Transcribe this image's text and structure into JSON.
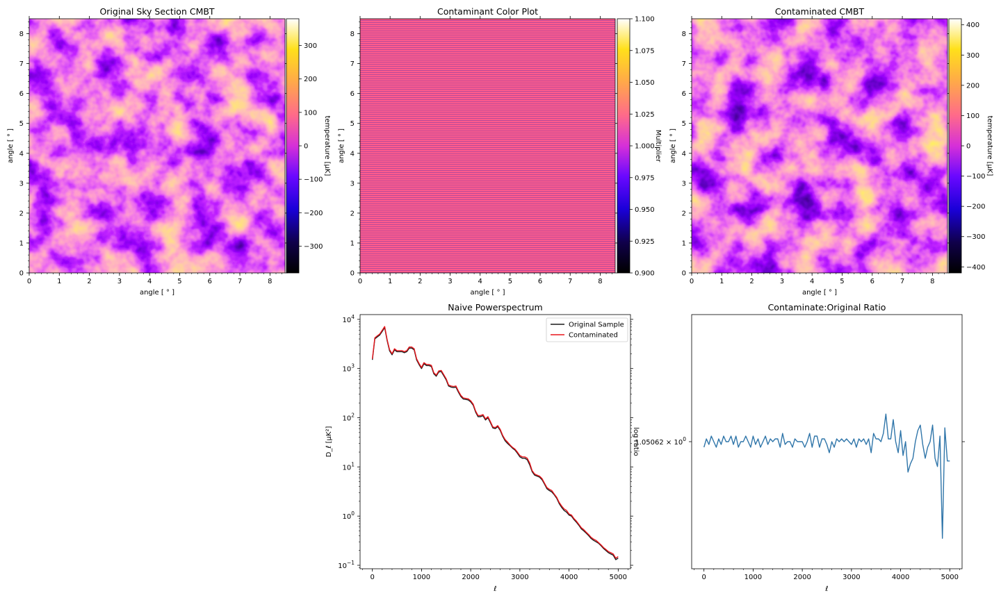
{
  "colors": {
    "original_line": "#1a1a1a",
    "contaminated_line": "#e8151b",
    "ratio_line": "#2f75a9",
    "contaminant_fill": "#ff5b8a"
  },
  "colormap": "gnuplot2",
  "chart_data": [
    {
      "id": "original_sky",
      "type": "heatmap",
      "title": "Original Sky Section CMBT",
      "xlabel": "angle [ $^\\circ$ ]",
      "ylabel": "angle [ $^\\circ$ ]",
      "xlim": [
        0,
        8.5
      ],
      "ylim": [
        0,
        8.5
      ],
      "xticks": [
        "0",
        "1",
        "2",
        "3",
        "4",
        "5",
        "6",
        "7",
        "8"
      ],
      "yticks": [
        "0",
        "1",
        "2",
        "3",
        "4",
        "5",
        "6",
        "7",
        "8"
      ],
      "colorbar": {
        "label": "temperature [μK]",
        "range": [
          -380,
          380
        ],
        "ticks": [
          {
            "value": -300,
            "label": "−300"
          },
          {
            "value": -200,
            "label": "−200"
          },
          {
            "value": -100,
            "label": "−100"
          },
          {
            "value": 0,
            "label": "0"
          },
          {
            "value": 100,
            "label": "100"
          },
          {
            "value": 200,
            "label": "200"
          },
          {
            "value": 300,
            "label": "300"
          }
        ]
      }
    },
    {
      "id": "contaminant",
      "type": "heatmap",
      "title": "Contaminant Color Plot",
      "xlabel": "angle [ $^\\circ$ ]",
      "ylabel": "angle [ $^\\circ$ ]",
      "xlim": [
        0,
        8.5
      ],
      "ylim": [
        0,
        8.5
      ],
      "xticks": [
        "0",
        "1",
        "2",
        "3",
        "4",
        "5",
        "6",
        "7",
        "8"
      ],
      "yticks": [
        "0",
        "1",
        "2",
        "3",
        "4",
        "5",
        "6",
        "7",
        "8"
      ],
      "value": 1.0,
      "colorbar": {
        "label": "Multiplier",
        "range": [
          0.9,
          1.1
        ],
        "ticks": [
          {
            "value": 0.9,
            "label": "0.900"
          },
          {
            "value": 0.925,
            "label": "0.925"
          },
          {
            "value": 0.95,
            "label": "0.950"
          },
          {
            "value": 0.975,
            "label": "0.975"
          },
          {
            "value": 1.0,
            "label": "1.000"
          },
          {
            "value": 1.025,
            "label": "1.025"
          },
          {
            "value": 1.05,
            "label": "1.050"
          },
          {
            "value": 1.075,
            "label": "1.075"
          },
          {
            "value": 1.1,
            "label": "1.100"
          }
        ]
      }
    },
    {
      "id": "contaminated_sky",
      "type": "heatmap",
      "title": "Contaminated CMBT",
      "xlabel": "angle [ $^\\circ$ ]",
      "ylabel": "angle [ $^\\circ$ ]",
      "xlim": [
        0,
        8.5
      ],
      "ylim": [
        0,
        8.5
      ],
      "xticks": [
        "0",
        "1",
        "2",
        "3",
        "4",
        "5",
        "6",
        "7",
        "8"
      ],
      "yticks": [
        "0",
        "1",
        "2",
        "3",
        "4",
        "5",
        "6",
        "7",
        "8"
      ],
      "colorbar": {
        "label": "temperature [μK]",
        "range": [
          -420,
          420
        ],
        "ticks": [
          {
            "value": -400,
            "label": "−400"
          },
          {
            "value": -300,
            "label": "−300"
          },
          {
            "value": -200,
            "label": "−200"
          },
          {
            "value": -100,
            "label": "−100"
          },
          {
            "value": 0,
            "label": "0"
          },
          {
            "value": 100,
            "label": "100"
          },
          {
            "value": 200,
            "label": "200"
          },
          {
            "value": 300,
            "label": "300"
          },
          {
            "value": 400,
            "label": "400"
          }
        ]
      }
    },
    {
      "id": "powerspectrum",
      "type": "line",
      "title": "Naive Powerspectrum",
      "xlabel": "ℓ",
      "ylabel": "D_ℓ [μK²]",
      "yscale": "log",
      "xlim": [
        -250,
        5250
      ],
      "ylim": [
        0.085,
        12500
      ],
      "xticks": [
        {
          "value": 0,
          "label": "0"
        },
        {
          "value": 1000,
          "label": "1000"
        },
        {
          "value": 2000,
          "label": "2000"
        },
        {
          "value": 3000,
          "label": "3000"
        },
        {
          "value": 4000,
          "label": "4000"
        },
        {
          "value": 5000,
          "label": "5000"
        }
      ],
      "yticks": [
        {
          "value": 0.1,
          "base": "10",
          "exp": "−1"
        },
        {
          "value": 1,
          "base": "10",
          "exp": "0"
        },
        {
          "value": 10,
          "base": "10",
          "exp": "1"
        },
        {
          "value": 100,
          "base": "10",
          "exp": "2"
        },
        {
          "value": 1000,
          "base": "10",
          "exp": "3"
        },
        {
          "value": 10000,
          "base": "10",
          "exp": "4"
        }
      ],
      "legend": "top-right",
      "x": [
        0,
        50,
        100,
        150,
        200,
        250,
        300,
        350,
        400,
        450,
        500,
        550,
        600,
        650,
        700,
        750,
        800,
        850,
        900,
        950,
        1000,
        1050,
        1100,
        1150,
        1200,
        1250,
        1300,
        1350,
        1400,
        1450,
        1500,
        1550,
        1600,
        1650,
        1700,
        1750,
        1800,
        1850,
        1900,
        1950,
        2000,
        2050,
        2100,
        2150,
        2200,
        2250,
        2300,
        2350,
        2400,
        2450,
        2500,
        2550,
        2600,
        2650,
        2700,
        2750,
        2800,
        2850,
        2900,
        2950,
        3000,
        3050,
        3100,
        3150,
        3200,
        3250,
        3300,
        3350,
        3400,
        3450,
        3500,
        3550,
        3600,
        3650,
        3700,
        3750,
        3800,
        3850,
        3900,
        3950,
        4000,
        4050,
        4100,
        4150,
        4200,
        4250,
        4300,
        4350,
        4400,
        4450,
        4500,
        4550,
        4600,
        4650,
        4700,
        4750,
        4800,
        4850,
        4900,
        4950,
        5000
      ],
      "series": [
        {
          "name": "Original Sample",
          "color": "#1a1a1a",
          "values": [
            1500,
            4000,
            4400,
            4800,
            5700,
            6800,
            3700,
            2300,
            1900,
            2400,
            2200,
            2200,
            2200,
            2100,
            2200,
            2600,
            2600,
            2400,
            1500,
            1200,
            1000,
            1250,
            1150,
            1150,
            1100,
            780,
            700,
            850,
            870,
            720,
            590,
            440,
            420,
            410,
            420,
            330,
            270,
            240,
            235,
            230,
            210,
            180,
            130,
            105,
            105,
            110,
            90,
            100,
            80,
            62,
            60,
            66,
            55,
            42,
            34,
            30,
            27,
            24,
            22,
            19,
            16,
            15,
            15,
            14,
            11,
            8,
            6.8,
            6.5,
            6.2,
            5.5,
            4.5,
            3.6,
            3.3,
            3.1,
            2.7,
            2.3,
            1.8,
            1.5,
            1.3,
            1.2,
            1.05,
            1.0,
            0.85,
            0.75,
            0.65,
            0.55,
            0.5,
            0.45,
            0.4,
            0.35,
            0.32,
            0.3,
            0.28,
            0.25,
            0.22,
            0.2,
            0.18,
            0.17,
            0.16,
            0.13,
            0.14
          ]
        },
        {
          "name": "Contaminated",
          "color": "#e8151b",
          "values": [
            1578,
            4210,
            4631,
            5052,
            5999,
            7157,
            3894,
            2421,
            2000,
            2526,
            2315,
            2315,
            2315,
            2210,
            2315,
            2736,
            2736,
            2526,
            1579,
            1263,
            1052,
            1316,
            1210,
            1210,
            1158,
            821,
            737,
            895,
            916,
            758,
            621,
            463,
            442,
            432,
            442,
            347,
            284,
            253,
            247,
            242,
            221,
            189,
            137,
            111,
            111,
            116,
            95,
            105,
            84,
            65,
            63,
            69,
            58,
            44,
            36,
            32,
            28,
            25,
            23,
            20,
            17,
            16,
            16,
            15,
            12,
            8.4,
            7.2,
            6.8,
            6.5,
            5.8,
            4.7,
            3.8,
            3.5,
            3.3,
            2.8,
            2.4,
            1.9,
            1.6,
            1.4,
            1.3,
            1.1,
            1.05,
            0.89,
            0.79,
            0.68,
            0.58,
            0.53,
            0.47,
            0.42,
            0.37,
            0.34,
            0.32,
            0.29,
            0.26,
            0.23,
            0.21,
            0.19,
            0.18,
            0.17,
            0.14,
            0.15
          ]
        }
      ]
    },
    {
      "id": "ratio",
      "type": "line",
      "title": "Contaminate:Original Ratio",
      "xlabel": "ℓ",
      "ylabel": "log ratio",
      "yscale": "log",
      "xlim": [
        -250,
        5250
      ],
      "ylim": [
        1.050574,
        1.050666
      ],
      "xticks": [
        {
          "value": 0,
          "label": "0"
        },
        {
          "value": 1000,
          "label": "1000"
        },
        {
          "value": 2000,
          "label": "2000"
        },
        {
          "value": 3000,
          "label": "3000"
        },
        {
          "value": 4000,
          "label": "4000"
        },
        {
          "value": 5000,
          "label": "5000"
        }
      ],
      "yticks": [
        {
          "value": 1.05062,
          "label": "1.05062 × 10",
          "exp": "0"
        }
      ],
      "x": [
        0,
        50,
        100,
        150,
        200,
        250,
        300,
        350,
        400,
        450,
        500,
        550,
        600,
        650,
        700,
        750,
        800,
        850,
        900,
        950,
        1000,
        1050,
        1100,
        1150,
        1200,
        1250,
        1300,
        1350,
        1400,
        1450,
        1500,
        1550,
        1600,
        1650,
        1700,
        1750,
        1800,
        1850,
        1900,
        1950,
        2000,
        2050,
        2100,
        2150,
        2200,
        2250,
        2300,
        2350,
        2400,
        2450,
        2500,
        2550,
        2600,
        2650,
        2700,
        2750,
        2800,
        2850,
        2900,
        2950,
        3000,
        3050,
        3100,
        3150,
        3200,
        3250,
        3300,
        3350,
        3400,
        3450,
        3500,
        3550,
        3600,
        3650,
        3700,
        3750,
        3800,
        3850,
        3900,
        3950,
        4000,
        4050,
        4100,
        4150,
        4200,
        4250,
        4300,
        4350,
        4400,
        4450,
        4500,
        4550,
        4600,
        4650,
        4700,
        4750,
        4800,
        4850,
        4900,
        4950,
        5000
      ],
      "values": [
        1.050618,
        1.050621,
        1.050619,
        1.050622,
        1.05062,
        1.050618,
        1.050621,
        1.050619,
        1.050622,
        1.05062,
        1.05062,
        1.050622,
        1.050619,
        1.050622,
        1.050618,
        1.05062,
        1.05062,
        1.050622,
        1.05062,
        1.050618,
        1.050622,
        1.050619,
        1.050621,
        1.050618,
        1.05062,
        1.050622,
        1.050619,
        1.050621,
        1.05062,
        1.050621,
        1.050621,
        1.050618,
        1.050623,
        1.050619,
        1.05062,
        1.05062,
        1.050618,
        1.050621,
        1.05062,
        1.05062,
        1.05062,
        1.050618,
        1.05062,
        1.050623,
        1.050618,
        1.050622,
        1.050622,
        1.050618,
        1.050621,
        1.050621,
        1.050619,
        1.050616,
        1.05062,
        1.050618,
        1.050621,
        1.05062,
        1.050621,
        1.05062,
        1.050621,
        1.05062,
        1.050619,
        1.050621,
        1.050618,
        1.050621,
        1.05062,
        1.050621,
        1.050619,
        1.050621,
        1.050616,
        1.050623,
        1.050621,
        1.050621,
        1.05062,
        1.050623,
        1.05063,
        1.050621,
        1.050621,
        1.050628,
        1.05062,
        1.050616,
        1.050624,
        1.050615,
        1.05062,
        1.050609,
        1.050612,
        1.050614,
        1.05062,
        1.050624,
        1.050626,
        1.050619,
        1.050614,
        1.050618,
        1.05062,
        1.050626,
        1.050614,
        1.050611,
        1.050622,
        1.050585,
        1.050625,
        1.050613,
        1.050613
      ]
    }
  ]
}
